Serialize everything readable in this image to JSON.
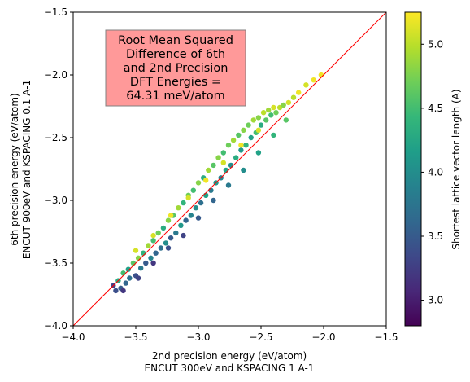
{
  "chart_data": {
    "type": "scatter",
    "title": "",
    "xlabel": [
      "2nd precision energy (eV/atom)",
      "ENCUT 300eV and KSPACING 1 A-1"
    ],
    "ylabel": [
      "6th precision energy (eV/atom)",
      "ENCUT 900eV and KSPACING 0.1 A-1"
    ],
    "xlim": [
      -4.0,
      -1.5
    ],
    "ylim": [
      -4.0,
      -1.5
    ],
    "xticks": [
      "−4.0",
      "−3.5",
      "−3.0",
      "−2.5",
      "−2.0",
      "−1.5"
    ],
    "yticks": [
      "−4.0",
      "−3.5",
      "−3.0",
      "−2.5",
      "−2.0",
      "−1.5"
    ],
    "xtick_values": [
      -4.0,
      -3.5,
      -3.0,
      -2.5,
      -2.0,
      -1.5
    ],
    "ytick_values": [
      -4.0,
      -3.5,
      -3.0,
      -2.5,
      -2.0,
      -1.5
    ],
    "grid": false,
    "reference_line": {
      "from": [
        -4.0,
        -4.0
      ],
      "to": [
        -1.5,
        -1.5
      ],
      "color": "#ff0000"
    },
    "annotation": {
      "lines": [
        "Root Mean Squared",
        "Difference of 6th",
        "and 2nd Precision",
        "DFT Energies =",
        "64.31 meV/atom"
      ],
      "box_color": "#ff9999"
    },
    "colorbar": {
      "label": "Shortest lattice vector length (A)",
      "range": [
        2.8,
        5.25
      ],
      "ticks": [
        "3.0",
        "3.5",
        "4.0",
        "4.5",
        "5.0"
      ],
      "tick_values": [
        3.0,
        3.5,
        4.0,
        4.5,
        5.0
      ],
      "colormap": "viridis",
      "colormap_stops": [
        "#440154",
        "#482878",
        "#3e4989",
        "#31688e",
        "#26828e",
        "#1f9e89",
        "#35b779",
        "#6ece58",
        "#b5de2b",
        "#fde725"
      ]
    },
    "series": [
      {
        "points_description_note": "",
        "points": [
          [
            -3.68,
            -3.68,
            3.3
          ],
          [
            -3.66,
            -3.72,
            3.4
          ],
          [
            -3.64,
            -3.64,
            4.3
          ],
          [
            -3.62,
            -3.7,
            3.5
          ],
          [
            -3.6,
            -3.58,
            4.5
          ],
          [
            -3.58,
            -3.66,
            3.6
          ],
          [
            -3.56,
            -3.55,
            4.2
          ],
          [
            -3.55,
            -3.62,
            3.7
          ],
          [
            -3.52,
            -3.5,
            4.6
          ],
          [
            -3.5,
            -3.6,
            3.4
          ],
          [
            -3.48,
            -3.46,
            4.8
          ],
          [
            -3.46,
            -3.54,
            3.8
          ],
          [
            -3.44,
            -3.42,
            4.4
          ],
          [
            -3.42,
            -3.5,
            3.5
          ],
          [
            -3.4,
            -3.36,
            4.9
          ],
          [
            -3.38,
            -3.46,
            3.9
          ],
          [
            -3.36,
            -3.32,
            4.5
          ],
          [
            -3.34,
            -3.42,
            3.6
          ],
          [
            -3.32,
            -3.26,
            4.7
          ],
          [
            -3.3,
            -3.38,
            3.7
          ],
          [
            -3.28,
            -3.22,
            4.3
          ],
          [
            -3.26,
            -3.34,
            4.0
          ],
          [
            -3.24,
            -3.16,
            4.8
          ],
          [
            -3.22,
            -3.3,
            3.5
          ],
          [
            -3.2,
            -3.12,
            4.6
          ],
          [
            -3.18,
            -3.26,
            3.8
          ],
          [
            -3.16,
            -3.06,
            4.9
          ],
          [
            -3.14,
            -3.2,
            4.1
          ],
          [
            -3.12,
            -3.02,
            4.4
          ],
          [
            -3.1,
            -3.16,
            3.6
          ],
          [
            -3.08,
            -2.96,
            4.7
          ],
          [
            -3.06,
            -3.12,
            3.9
          ],
          [
            -3.04,
            -2.92,
            4.5
          ],
          [
            -3.02,
            -3.06,
            4.0
          ],
          [
            -3.0,
            -2.86,
            4.8
          ],
          [
            -2.98,
            -3.02,
            3.7
          ],
          [
            -2.96,
            -2.82,
            4.3
          ],
          [
            -2.94,
            -2.96,
            4.2
          ],
          [
            -2.92,
            -2.76,
            4.9
          ],
          [
            -2.9,
            -2.92,
            3.8
          ],
          [
            -2.88,
            -2.72,
            4.6
          ],
          [
            -2.86,
            -2.86,
            4.1
          ],
          [
            -2.84,
            -2.66,
            4.8
          ],
          [
            -2.82,
            -2.82,
            3.9
          ],
          [
            -2.8,
            -2.62,
            4.5
          ],
          [
            -2.78,
            -2.76,
            4.2
          ],
          [
            -2.76,
            -2.56,
            4.7
          ],
          [
            -2.74,
            -2.72,
            4.0
          ],
          [
            -2.72,
            -2.52,
            4.9
          ],
          [
            -2.7,
            -2.66,
            4.3
          ],
          [
            -2.68,
            -2.48,
            4.6
          ],
          [
            -2.66,
            -2.6,
            4.1
          ],
          [
            -2.64,
            -2.44,
            4.8
          ],
          [
            -2.62,
            -2.56,
            4.4
          ],
          [
            -2.6,
            -2.4,
            4.7
          ],
          [
            -2.58,
            -2.5,
            4.2
          ],
          [
            -2.56,
            -2.36,
            4.9
          ],
          [
            -2.54,
            -2.46,
            4.5
          ],
          [
            -2.52,
            -2.34,
            4.8
          ],
          [
            -2.5,
            -2.4,
            4.3
          ],
          [
            -2.48,
            -2.3,
            5.0
          ],
          [
            -2.46,
            -2.36,
            4.6
          ],
          [
            -2.44,
            -2.28,
            4.9
          ],
          [
            -2.42,
            -2.32,
            4.5
          ],
          [
            -2.4,
            -2.26,
            5.1
          ],
          [
            -2.38,
            -2.3,
            4.7
          ],
          [
            -2.35,
            -2.26,
            5.0
          ],
          [
            -2.32,
            -2.24,
            4.8
          ],
          [
            -2.28,
            -2.22,
            5.1
          ],
          [
            -2.24,
            -2.18,
            5.0
          ],
          [
            -2.2,
            -2.14,
            5.2
          ],
          [
            -2.14,
            -2.08,
            5.1
          ],
          [
            -2.08,
            -2.04,
            5.2
          ],
          [
            -2.02,
            -2.0,
            5.2
          ],
          [
            -3.5,
            -3.4,
            5.1
          ],
          [
            -3.36,
            -3.28,
            5.1
          ],
          [
            -3.22,
            -3.12,
            5.2
          ],
          [
            -3.08,
            -2.98,
            5.1
          ],
          [
            -2.94,
            -2.84,
            5.2
          ],
          [
            -2.8,
            -2.7,
            5.1
          ],
          [
            -2.66,
            -2.56,
            5.2
          ],
          [
            -2.52,
            -2.44,
            5.1
          ],
          [
            -3.6,
            -3.72,
            3.2
          ],
          [
            -3.48,
            -3.62,
            3.3
          ],
          [
            -3.36,
            -3.5,
            3.2
          ],
          [
            -3.24,
            -3.38,
            3.4
          ],
          [
            -3.12,
            -3.28,
            3.3
          ],
          [
            -3.0,
            -3.14,
            3.5
          ],
          [
            -2.88,
            -3.0,
            3.6
          ],
          [
            -2.76,
            -2.88,
            3.8
          ],
          [
            -2.64,
            -2.76,
            4.0
          ],
          [
            -2.52,
            -2.62,
            4.2
          ],
          [
            -2.4,
            -2.48,
            4.4
          ],
          [
            -2.3,
            -2.36,
            4.6
          ]
        ]
      }
    ]
  }
}
